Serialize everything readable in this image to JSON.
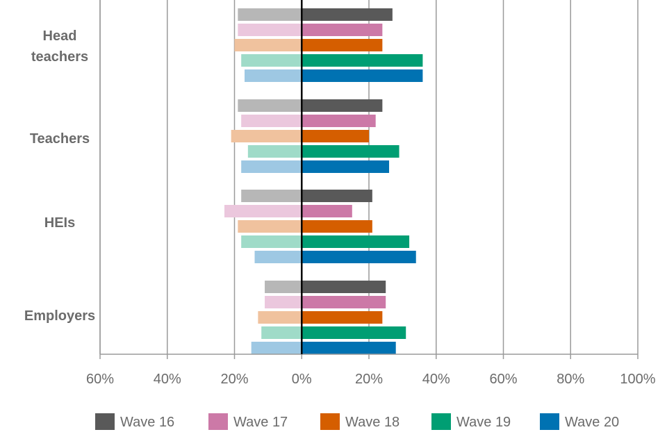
{
  "chart_data": {
    "type": "bar",
    "orientation": "horizontal-diverging",
    "title": "",
    "xlabel": "",
    "ylabel": "",
    "xlim": [
      -60,
      100
    ],
    "x_ticks": [
      -60,
      -40,
      -20,
      0,
      20,
      40,
      60,
      80,
      100
    ],
    "x_tick_labels": [
      "60%",
      "40%",
      "20%",
      "0%",
      "20%",
      "40%",
      "60%",
      "80%",
      "100%"
    ],
    "grid": "vertical",
    "legend_position": "bottom",
    "categories": [
      {
        "label_lines": [
          "Head",
          "teachers"
        ]
      },
      {
        "label_lines": [
          "Teachers"
        ]
      },
      {
        "label_lines": [
          "HEIs"
        ]
      },
      {
        "label_lines": [
          "Employers"
        ]
      }
    ],
    "series": [
      {
        "name": "Wave 16",
        "color": "#595959",
        "light_color": "#b7b7b7",
        "positive": [
          27,
          24,
          21,
          25
        ],
        "negative": [
          -19,
          -19,
          -18,
          -11
        ]
      },
      {
        "name": "Wave 17",
        "color": "#cc79a7",
        "light_color": "#ebc7dd",
        "positive": [
          24,
          22,
          15,
          25
        ],
        "negative": [
          -19,
          -18,
          -23,
          -11
        ]
      },
      {
        "name": "Wave 18",
        "color": "#d55e00",
        "light_color": "#f0c29e",
        "positive": [
          24,
          20,
          21,
          24
        ],
        "negative": [
          -20,
          -21,
          -19,
          -13
        ]
      },
      {
        "name": "Wave 19",
        "color": "#009e73",
        "light_color": "#9fdbc8",
        "positive": [
          36,
          29,
          32,
          31
        ],
        "negative": [
          -18,
          -16,
          -18,
          -12
        ]
      },
      {
        "name": "Wave 20",
        "color": "#0072b2",
        "light_color": "#9ec8e3",
        "positive": [
          36,
          26,
          34,
          28
        ],
        "negative": [
          -17,
          -18,
          -14,
          -15
        ]
      }
    ]
  }
}
